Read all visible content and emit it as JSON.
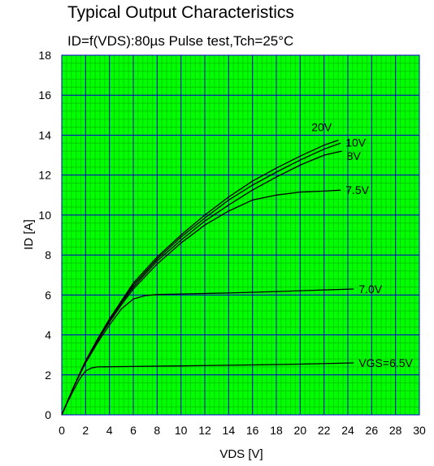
{
  "chart_data": {
    "type": "line",
    "title": "Typical Output Characteristics",
    "subtitle": "ID=f(VDS):80µs Pulse test,Tch=25°C",
    "xlabel": "VDS [V]",
    "ylabel": "ID [A]",
    "xlim": [
      0,
      30
    ],
    "ylim": [
      0,
      18
    ],
    "x_ticks": [
      0,
      2,
      4,
      6,
      8,
      10,
      12,
      14,
      16,
      18,
      20,
      22,
      24,
      26,
      28,
      30
    ],
    "y_ticks": [
      0,
      2,
      4,
      6,
      8,
      10,
      12,
      14,
      16,
      18
    ],
    "grid": "on",
    "colors": {
      "background": "#00ff00",
      "minor_grid": "#00cc00",
      "major_grid": "#0000cc",
      "line": "#000000"
    },
    "series": [
      {
        "name": "20V",
        "points": [
          [
            0,
            0
          ],
          [
            1,
            1.4
          ],
          [
            2,
            2.7
          ],
          [
            3,
            3.8
          ],
          [
            4,
            4.8
          ],
          [
            5,
            5.7
          ],
          [
            6,
            6.6
          ],
          [
            8,
            7.9
          ],
          [
            10,
            9.0
          ],
          [
            12,
            10.0
          ],
          [
            14,
            10.9
          ],
          [
            16,
            11.7
          ],
          [
            18,
            12.35
          ],
          [
            20,
            12.95
          ],
          [
            22,
            13.5
          ],
          [
            23.2,
            13.75
          ]
        ]
      },
      {
        "name": "10V",
        "points": [
          [
            0,
            0
          ],
          [
            1,
            1.4
          ],
          [
            2,
            2.7
          ],
          [
            3,
            3.75
          ],
          [
            4,
            4.75
          ],
          [
            5,
            5.65
          ],
          [
            6,
            6.5
          ],
          [
            8,
            7.8
          ],
          [
            10,
            8.9
          ],
          [
            12,
            9.85
          ],
          [
            14,
            10.75
          ],
          [
            16,
            11.5
          ],
          [
            18,
            12.15
          ],
          [
            20,
            12.75
          ],
          [
            22,
            13.3
          ],
          [
            23.4,
            13.6
          ]
        ]
      },
      {
        "name": "8V",
        "points": [
          [
            0,
            0
          ],
          [
            1,
            1.4
          ],
          [
            2,
            2.7
          ],
          [
            3,
            3.7
          ],
          [
            4,
            4.7
          ],
          [
            5,
            5.6
          ],
          [
            6,
            6.4
          ],
          [
            8,
            7.7
          ],
          [
            10,
            8.75
          ],
          [
            12,
            9.7
          ],
          [
            14,
            10.5
          ],
          [
            16,
            11.25
          ],
          [
            18,
            11.9
          ],
          [
            20,
            12.5
          ],
          [
            22,
            13.0
          ],
          [
            23.5,
            13.2
          ]
        ]
      },
      {
        "name": "7.5V",
        "points": [
          [
            0,
            0
          ],
          [
            1,
            1.4
          ],
          [
            2,
            2.7
          ],
          [
            3,
            3.7
          ],
          [
            4,
            4.65
          ],
          [
            5,
            5.5
          ],
          [
            6,
            6.3
          ],
          [
            8,
            7.55
          ],
          [
            10,
            8.6
          ],
          [
            12,
            9.5
          ],
          [
            14,
            10.2
          ],
          [
            16,
            10.75
          ],
          [
            18,
            11.0
          ],
          [
            20,
            11.15
          ],
          [
            22,
            11.2
          ],
          [
            23.4,
            11.25
          ]
        ]
      },
      {
        "name": "7.0V",
        "points": [
          [
            0,
            0
          ],
          [
            1,
            1.4
          ],
          [
            2,
            2.6
          ],
          [
            3,
            3.6
          ],
          [
            4,
            4.5
          ],
          [
            5,
            5.3
          ],
          [
            6,
            5.8
          ],
          [
            7,
            5.97
          ],
          [
            8,
            6.02
          ],
          [
            10,
            6.05
          ],
          [
            14,
            6.1
          ],
          [
            18,
            6.17
          ],
          [
            22,
            6.25
          ],
          [
            24.5,
            6.3
          ]
        ]
      },
      {
        "name": "VGS=6.5V",
        "points": [
          [
            0,
            0
          ],
          [
            0.5,
            0.65
          ],
          [
            1,
            1.25
          ],
          [
            1.5,
            1.8
          ],
          [
            2,
            2.2
          ],
          [
            2.5,
            2.35
          ],
          [
            3,
            2.4
          ],
          [
            6,
            2.42
          ],
          [
            10,
            2.45
          ],
          [
            16,
            2.5
          ],
          [
            20,
            2.54
          ],
          [
            24.5,
            2.6
          ]
        ]
      }
    ]
  }
}
